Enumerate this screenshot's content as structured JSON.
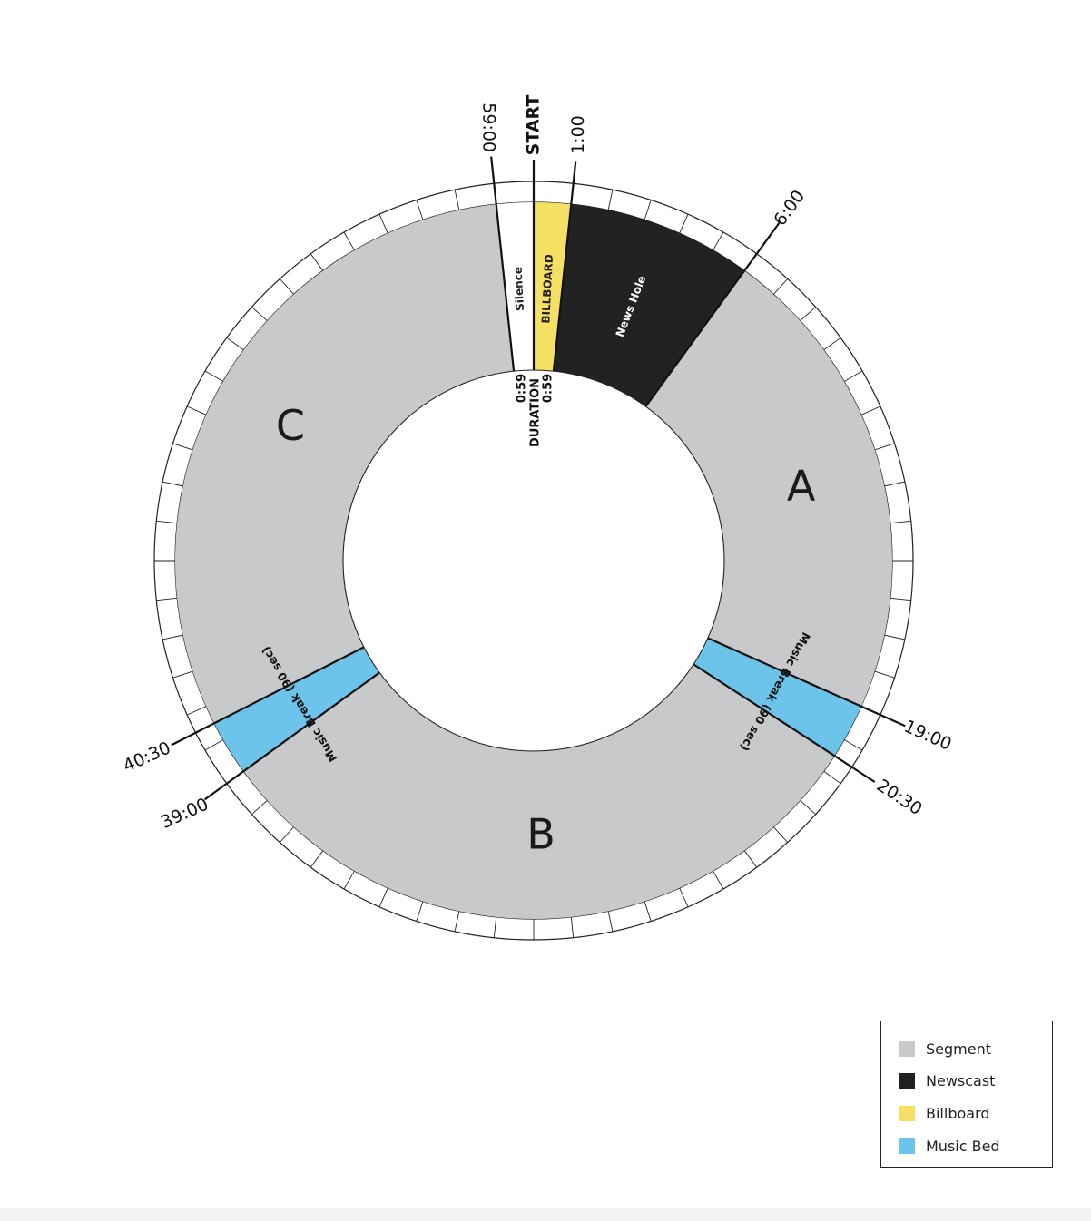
{
  "chart_data": {
    "type": "radial-clock",
    "total_minutes": 60,
    "segments": [
      {
        "id": "billboard",
        "start": 0,
        "end": 1,
        "category": "billboard",
        "label": "BILLBOARD"
      },
      {
        "id": "newshole",
        "start": 1,
        "end": 6,
        "category": "newscast",
        "label": "News Hole"
      },
      {
        "id": "segment-a",
        "start": 6,
        "end": 19,
        "category": "segment",
        "label": "A"
      },
      {
        "id": "music-break-1",
        "start": 19,
        "end": 20.5,
        "category": "music",
        "label": "Music Break (90 sec)"
      },
      {
        "id": "segment-b",
        "start": 20.5,
        "end": 39,
        "category": "segment",
        "label": "B"
      },
      {
        "id": "music-break-2",
        "start": 39,
        "end": 40.5,
        "category": "music",
        "label": "Music Break (90 sec)"
      },
      {
        "id": "segment-c",
        "start": 40.5,
        "end": 59,
        "category": "segment",
        "label": "C"
      },
      {
        "id": "silence",
        "start": 59,
        "end": 60,
        "category": "silence",
        "label": "Silence"
      }
    ],
    "time_markers": [
      {
        "minute": 0,
        "label": "START"
      },
      {
        "minute": 1,
        "label": "1:00"
      },
      {
        "minute": 6,
        "label": "6:00"
      },
      {
        "minute": 19,
        "label": "19:00"
      },
      {
        "minute": 20.5,
        "label": "20:30"
      },
      {
        "minute": 39,
        "label": "39:00"
      },
      {
        "minute": 40.5,
        "label": "40:30"
      },
      {
        "minute": 59,
        "label": "59:00"
      }
    ],
    "duration_label": "DURATION",
    "duration_values": [
      "0:59",
      "0:59"
    ],
    "tick_count": 60,
    "colors": {
      "segment": "#c8c9cb",
      "newscast": "#222222",
      "billboard": "#f5e064",
      "music": "#6cc4ea",
      "silence": "#ffffff"
    }
  },
  "legend": {
    "items": [
      {
        "label": "Segment",
        "color": "#c8c9cb"
      },
      {
        "label": "Newscast",
        "color": "#222222"
      },
      {
        "label": "Billboard",
        "color": "#f5e064"
      },
      {
        "label": "Music Bed",
        "color": "#6cc4ea"
      }
    ]
  }
}
